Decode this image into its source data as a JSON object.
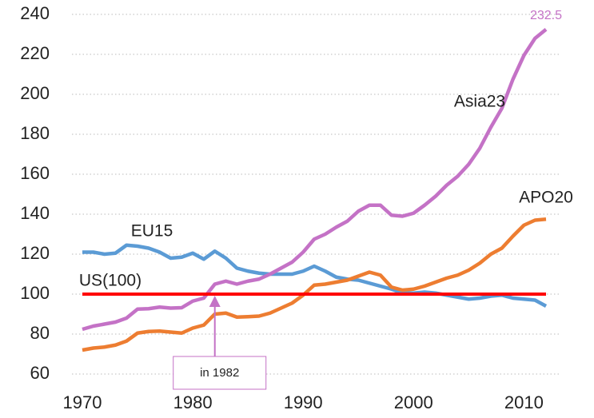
{
  "chart_data": {
    "type": "line",
    "x": [
      1970,
      1971,
      1972,
      1973,
      1974,
      1975,
      1976,
      1977,
      1978,
      1979,
      1980,
      1981,
      1982,
      1983,
      1984,
      1985,
      1986,
      1987,
      1988,
      1989,
      1990,
      1991,
      1992,
      1993,
      1994,
      1995,
      1996,
      1997,
      1998,
      1999,
      2000,
      2001,
      2002,
      2003,
      2004,
      2005,
      2006,
      2007,
      2008,
      2009,
      2010,
      2011,
      2012
    ],
    "series": [
      {
        "name": "EU15",
        "color": "#5b9bd5",
        "values": [
          121,
          121,
          120,
          120.5,
          124.5,
          124,
          123,
          121,
          118,
          118.5,
          120.5,
          117.5,
          121.5,
          118,
          113,
          111.5,
          110.5,
          110,
          110,
          110,
          111.5,
          114,
          111.5,
          108.5,
          107.5,
          107,
          105.5,
          104,
          102.5,
          100.5,
          100.5,
          101,
          100.5,
          99.5,
          98.5,
          97.5,
          98,
          99,
          99.5,
          98,
          97.5,
          97,
          94
        ]
      },
      {
        "name": "Asia23",
        "color": "#c472c6",
        "values": [
          82.4,
          84,
          85,
          86,
          88,
          92.5,
          92.7,
          93.5,
          93,
          93.2,
          96.5,
          98,
          105,
          106.5,
          105,
          106.5,
          107.5,
          110,
          113,
          116,
          121,
          127.5,
          130,
          133.5,
          136.5,
          141.5,
          144.5,
          144.5,
          139.5,
          139,
          140.5,
          144.5,
          149,
          154.5,
          159,
          165,
          173,
          183.5,
          193,
          207.5,
          219.5,
          228,
          232.5
        ]
      },
      {
        "name": "APO20",
        "color": "#ed7d31",
        "values": [
          72,
          73,
          73.5,
          74.5,
          76.5,
          80.5,
          81.3,
          81.5,
          81,
          80.5,
          83,
          84.5,
          90,
          90.5,
          88.5,
          88.7,
          89,
          90.5,
          93,
          95.5,
          99.5,
          104.5,
          105,
          106,
          107,
          109,
          111,
          109.5,
          103.5,
          102,
          102.5,
          104,
          106,
          108,
          109.5,
          112,
          115.5,
          120,
          123,
          129,
          134.5,
          137,
          137.5
        ]
      },
      {
        "name": "US(100)",
        "color": "#ff0000",
        "values": [
          100,
          100,
          100,
          100,
          100,
          100,
          100,
          100,
          100,
          100,
          100,
          100,
          100,
          100,
          100,
          100,
          100,
          100,
          100,
          100,
          100,
          100,
          100,
          100,
          100,
          100,
          100,
          100,
          100,
          100,
          100,
          100,
          100,
          100,
          100,
          100,
          100,
          100,
          100,
          100,
          100,
          100,
          100
        ]
      }
    ],
    "annotation": {
      "text": "in 1982",
      "x": 1982
    },
    "xlim": [
      1970,
      2012
    ],
    "xticks": [
      1970,
      1980,
      1990,
      2000,
      2010
    ],
    "ylim": [
      60,
      240
    ],
    "yticks": [
      60,
      80,
      100,
      120,
      140,
      160,
      180,
      200,
      220,
      240
    ],
    "grid": true
  }
}
